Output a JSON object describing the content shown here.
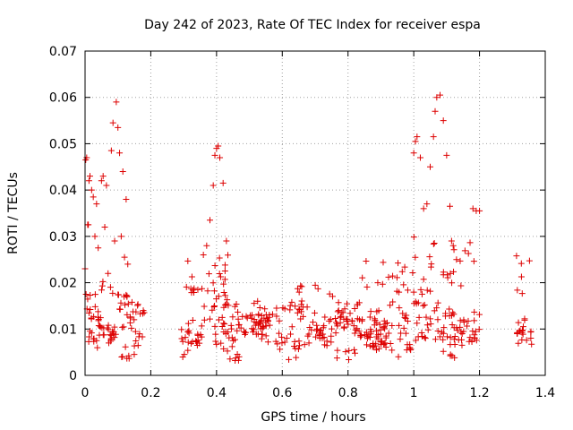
{
  "chart_data": {
    "type": "scatter",
    "title": "Day 242 of 2023, Rate Of TEC Index for receiver espa",
    "xlabel": "GPS time / hours",
    "ylabel": "ROTI / TECUs",
    "xlim": [
      0,
      1.4
    ],
    "ylim": [
      0,
      0.07
    ],
    "xticks": [
      0,
      0.2,
      0.4,
      0.6,
      0.8,
      1.0,
      1.2,
      1.4
    ],
    "xtick_labels": [
      "0",
      "0.2",
      "0.4",
      "0.6",
      "0.8",
      "1",
      "1.2",
      "1.4"
    ],
    "yticks": [
      0,
      0.01,
      0.02,
      0.03,
      0.04,
      0.05,
      0.06,
      0.07
    ],
    "ytick_labels": [
      "0",
      "0.01",
      "0.02",
      "0.03",
      "0.04",
      "0.05",
      "0.06",
      "0.07"
    ],
    "grid": true,
    "marker": "+",
    "marker_color": "#dd0000",
    "series": [
      {
        "name": "ROTI",
        "segments": [
          {
            "x_start": 0.0,
            "x_end": 0.18
          },
          {
            "x_start": 0.29,
            "x_end": 1.2
          },
          {
            "x_start": 1.31,
            "x_end": 1.36
          }
        ],
        "points": [
          [
            0.002,
            0.0465
          ],
          [
            0.005,
            0.047
          ],
          [
            0.008,
            0.0325
          ],
          [
            0.012,
            0.042
          ],
          [
            0.015,
            0.043
          ],
          [
            0.02,
            0.04
          ],
          [
            0.025,
            0.0385
          ],
          [
            0.03,
            0.03
          ],
          [
            0.035,
            0.037
          ],
          [
            0.04,
            0.0275
          ],
          [
            0.05,
            0.042
          ],
          [
            0.055,
            0.043
          ],
          [
            0.06,
            0.032
          ],
          [
            0.065,
            0.041
          ],
          [
            0.07,
            0.022
          ],
          [
            0.08,
            0.0485
          ],
          [
            0.085,
            0.0545
          ],
          [
            0.09,
            0.029
          ],
          [
            0.095,
            0.059
          ],
          [
            0.1,
            0.0535
          ],
          [
            0.105,
            0.048
          ],
          [
            0.11,
            0.03
          ],
          [
            0.115,
            0.044
          ],
          [
            0.12,
            0.0255
          ],
          [
            0.125,
            0.038
          ],
          [
            0.13,
            0.024
          ],
          [
            0.0,
            0.023
          ],
          [
            0.003,
            0.0175
          ],
          [
            0.01,
            0.0325
          ],
          [
            0.38,
            0.0335
          ],
          [
            0.39,
            0.041
          ],
          [
            0.395,
            0.0475
          ],
          [
            0.4,
            0.049
          ],
          [
            0.405,
            0.0495
          ],
          [
            0.41,
            0.047
          ],
          [
            0.42,
            0.0415
          ],
          [
            0.43,
            0.029
          ],
          [
            0.37,
            0.028
          ],
          [
            0.36,
            0.026
          ],
          [
            1.0,
            0.048
          ],
          [
            1.005,
            0.0505
          ],
          [
            1.01,
            0.0515
          ],
          [
            1.02,
            0.047
          ],
          [
            1.03,
            0.036
          ],
          [
            1.04,
            0.037
          ],
          [
            1.05,
            0.045
          ],
          [
            1.06,
            0.0515
          ],
          [
            1.065,
            0.057
          ],
          [
            1.07,
            0.06
          ],
          [
            1.08,
            0.0605
          ],
          [
            1.09,
            0.055
          ],
          [
            1.1,
            0.0475
          ],
          [
            1.11,
            0.0365
          ],
          [
            1.115,
            0.029
          ],
          [
            1.12,
            0.028
          ],
          [
            1.13,
            0.025
          ],
          [
            1.19,
            0.0355
          ],
          [
            1.2,
            0.0355
          ],
          [
            1.18,
            0.036
          ]
        ]
      }
    ],
    "generated_band_density": "points in segments are spread between ROTI 0.003 and 0.027 TECUs"
  }
}
